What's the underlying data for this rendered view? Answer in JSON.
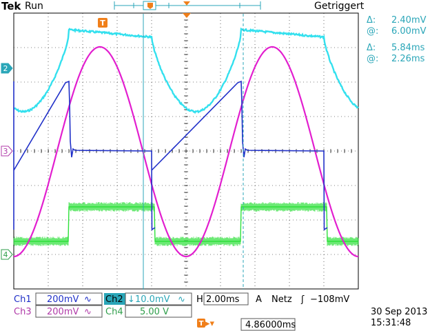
{
  "header": {
    "brand": "Tek",
    "run_state": "Run",
    "trigger_status": "Getriggert",
    "trigger_marker": "T"
  },
  "cursor_readouts": [
    {
      "symbol": "Δ:",
      "value": "2.40mV"
    },
    {
      "symbol": "@:",
      "value": "6.00mV"
    },
    {
      "symbol": "Δ:",
      "value": "5.84ms"
    },
    {
      "symbol": "@:",
      "value": "2.26ms"
    }
  ],
  "channel_markers": [
    {
      "label": "2",
      "color": "#2aa6b8",
      "level": 2.4
    },
    {
      "label": "3",
      "color": "#b03aa8",
      "level": 0.0
    },
    {
      "label": "4",
      "color": "#2e9e4a",
      "level": -3.0
    }
  ],
  "settings": {
    "ch1_name": "Ch1",
    "ch1_scale": "200mV",
    "ch2_name": "Ch2",
    "ch2_scale": "10.0mV",
    "ch3_name": "Ch3",
    "ch3_scale": "200mV",
    "ch4_name": "Ch4",
    "ch4_scale": "5.00 V",
    "time_prefix": "H",
    "timebase": "2.00ms",
    "trig_prefix": "A",
    "trig_source": "Netz",
    "trig_level": "−108mV",
    "trig_pos_marker": "T",
    "trig_pos_value": "4.86000ms"
  },
  "datetime": {
    "date": "30 Sep  2013",
    "time": "15:31:48"
  },
  "colors": {
    "ch1": "#1f2fc8",
    "ch2": "#33e0ee",
    "ch3": "#e21ecf",
    "ch4": "#2ee03a",
    "grid": "#000000",
    "cursor": "#2aa6b8",
    "trigger": "#f07f1a"
  }
}
